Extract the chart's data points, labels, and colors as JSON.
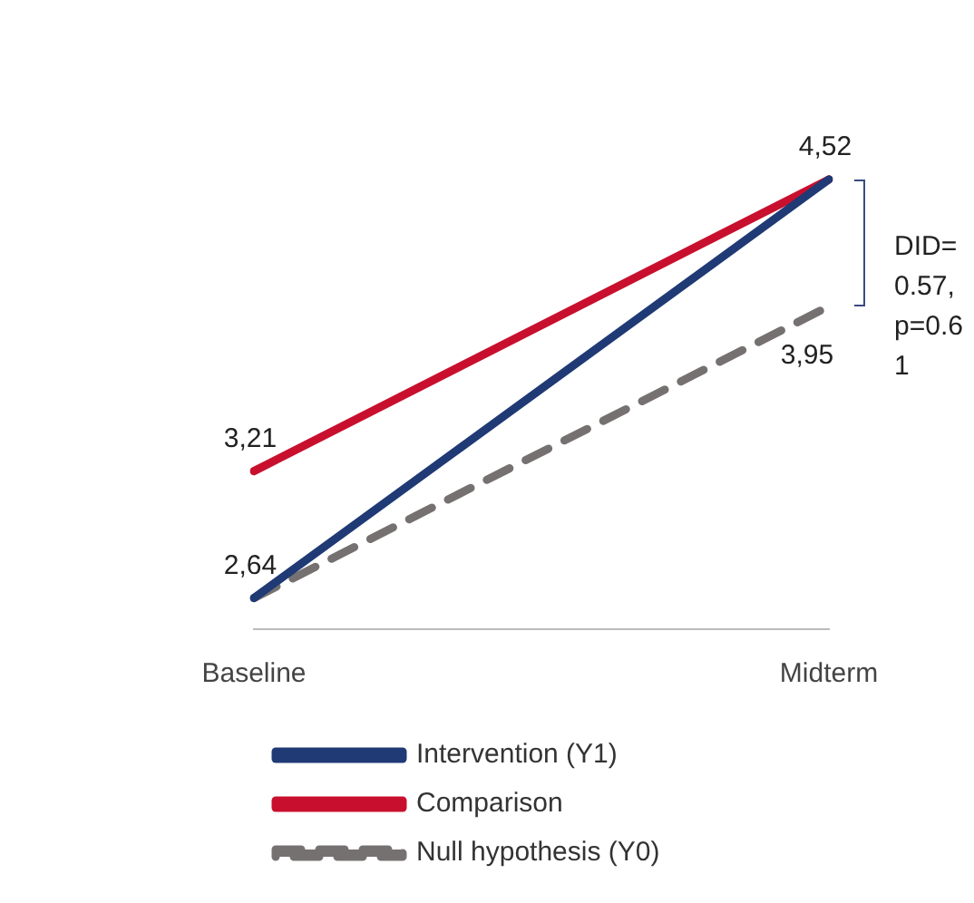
{
  "chart_data": {
    "type": "line",
    "categories": [
      "Baseline",
      "Midterm"
    ],
    "series": [
      {
        "name": "Intervention (Y1)",
        "color": "#1f3a74",
        "values": [
          2.64,
          4.52
        ],
        "value_labels": [
          "2,64",
          "4,52"
        ]
      },
      {
        "name": "Comparison",
        "color": "#c8102e",
        "values": [
          3.21,
          4.52
        ],
        "value_labels": [
          "3,21",
          null
        ]
      },
      {
        "name": "Null hypothesis (Y0)",
        "color": "#767171",
        "values": [
          2.64,
          3.95
        ],
        "value_labels": [
          null,
          "3,95"
        ],
        "line_style": "dashed"
      }
    ],
    "tick_labels": "x",
    "grid": false,
    "legend": "bottom",
    "marker": "none",
    "annotations": [
      "DID=0.57, p=0.61"
    ]
  }
}
